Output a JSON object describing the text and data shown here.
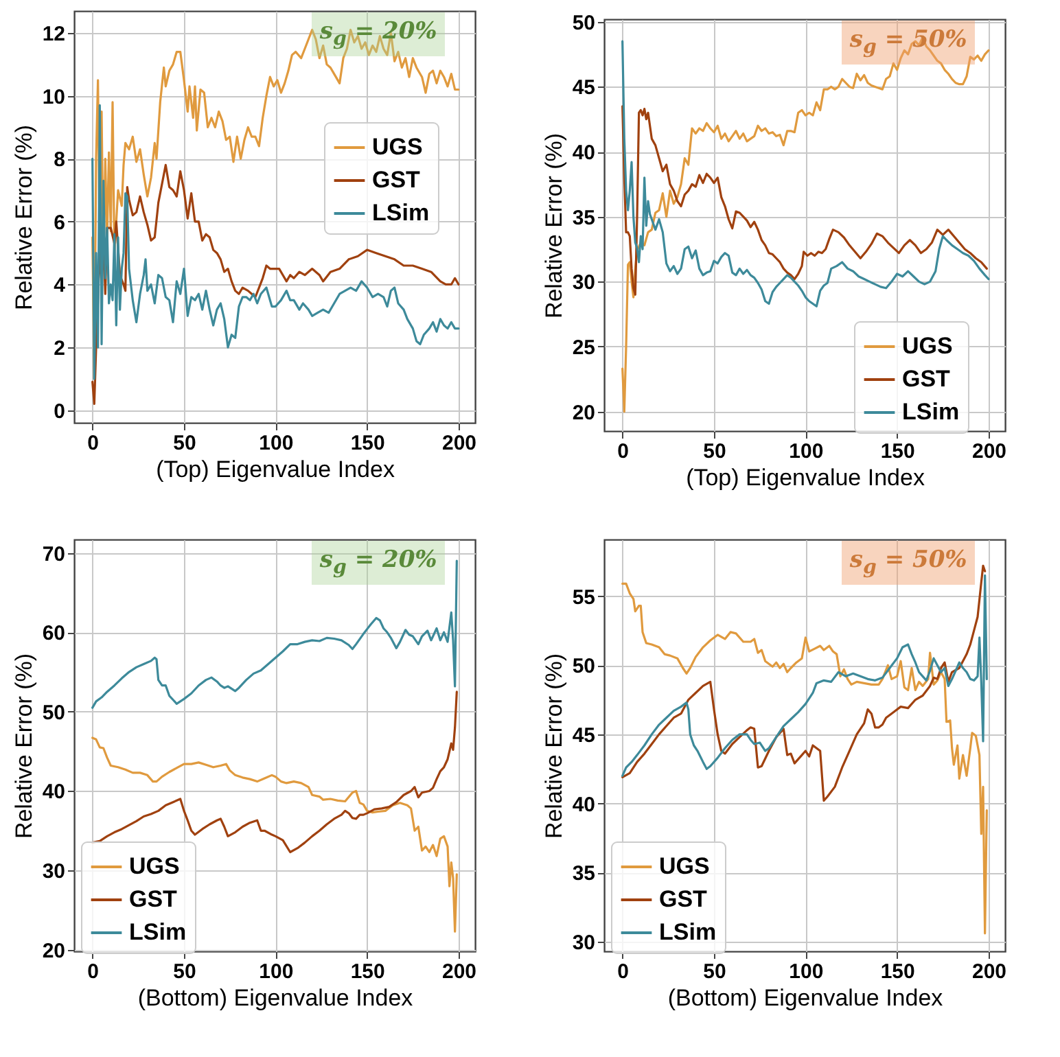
{
  "chart_data": [
    {
      "type": "line",
      "xlabel": "(Top) Eigenvalue Index",
      "ylabel": "Relative Error (%)",
      "annotations": [
        "s$_{g}$ = 20%"
      ],
      "xlim": [
        -10,
        209
      ],
      "xticks": [
        0,
        50,
        100,
        150,
        200
      ],
      "ylim": [
        -0.4,
        12.7
      ],
      "yticks": [
        0,
        2,
        4,
        6,
        8,
        10,
        12
      ],
      "grid": true,
      "legend": "right",
      "series": [
        {
          "name": "UGS",
          "color": "#e09a3e",
          "x": [
            0,
            1,
            2,
            3,
            4,
            5,
            6,
            7,
            8,
            9,
            10,
            11,
            12,
            14,
            16,
            17,
            18,
            20,
            22,
            24,
            26,
            28,
            30,
            32,
            34,
            35,
            37,
            39,
            40,
            42,
            44,
            46,
            48,
            50,
            52,
            53,
            55,
            56,
            57,
            59,
            61,
            63,
            65,
            67,
            69,
            71,
            73,
            75,
            77,
            79,
            81,
            83,
            85,
            87,
            89,
            91,
            93,
            95,
            97,
            99,
            101,
            103,
            105,
            107,
            109,
            111,
            114,
            116,
            118,
            120,
            122,
            124,
            126,
            128,
            130,
            132,
            135,
            137,
            139,
            141,
            143,
            145,
            147,
            149,
            151,
            153,
            155,
            157,
            159,
            161,
            163,
            165,
            167,
            169,
            171,
            173,
            175,
            177,
            180,
            182,
            184,
            186,
            188,
            190,
            192,
            194,
            196,
            198,
            200
          ],
          "values": [
            5.5,
            1,
            8,
            10.5,
            5,
            9.5,
            4.5,
            8,
            5.5,
            8.2,
            5.7,
            9.8,
            5,
            7,
            6.5,
            7.8,
            8.5,
            8.3,
            8.7,
            7.9,
            8.3,
            7.5,
            6.8,
            7.4,
            8.5,
            8,
            9.8,
            10.9,
            10.3,
            10.8,
            11,
            11.4,
            11.4,
            10.5,
            9.5,
            10.3,
            9.3,
            10.3,
            8.9,
            10.2,
            10.1,
            9,
            9.3,
            9,
            9.5,
            9.2,
            8.6,
            8.7,
            7.9,
            8.7,
            8,
            8.6,
            9,
            8.7,
            8.7,
            8.4,
            9.3,
            10,
            10.6,
            10.3,
            10.5,
            10.1,
            10.4,
            10.8,
            11.3,
            11.4,
            11.2,
            11.5,
            11.8,
            12.1,
            11.8,
            11.2,
            11.6,
            11,
            10.9,
            10.7,
            10.4,
            11.2,
            11.5,
            12.1,
            11.7,
            11.9,
            11.5,
            11.7,
            11.3,
            11.6,
            11.4,
            11.9,
            11.5,
            11.3,
            12,
            11.1,
            11.4,
            10.9,
            11.2,
            10.6,
            11.2,
            10.9,
            10.6,
            10.1,
            10.7,
            10.8,
            10.4,
            10.8,
            10.6,
            10.3,
            10.7,
            10.2,
            10.2
          ]
        },
        {
          "name": "GST",
          "color": "#a0410f",
          "x": [
            0,
            1,
            2,
            3,
            4,
            5,
            6,
            7,
            8,
            10,
            12,
            13,
            15,
            17,
            18,
            19,
            20,
            22,
            24,
            26,
            28,
            30,
            32,
            34,
            36,
            38,
            40,
            42,
            44,
            46,
            48,
            50,
            52,
            54,
            56,
            58,
            60,
            62,
            64,
            66,
            68,
            70,
            72,
            74,
            76,
            78,
            80,
            82,
            85,
            87,
            89,
            91,
            93,
            95,
            97,
            100,
            102,
            104,
            106,
            108,
            110,
            113,
            116,
            120,
            124,
            126,
            130,
            135,
            140,
            145,
            150,
            155,
            160,
            165,
            170,
            175,
            180,
            185,
            190,
            193,
            196,
            198,
            200
          ],
          "values": [
            0.9,
            0.2,
            2,
            3.5,
            5.2,
            4,
            5.5,
            3.7,
            5.8,
            5.8,
            5.3,
            6,
            4.3,
            4,
            3.8,
            7.1,
            6.7,
            6.2,
            6.3,
            6.8,
            6.3,
            5.9,
            5.4,
            5.5,
            6.6,
            7.2,
            7.8,
            7.1,
            7,
            6.8,
            7.6,
            7,
            6.1,
            6.9,
            6,
            6,
            5.4,
            5.6,
            5.5,
            5.1,
            5,
            4.8,
            4.4,
            4.5,
            4.1,
            3.8,
            3.7,
            3.9,
            3.8,
            3.7,
            3.6,
            3.9,
            4.2,
            4.6,
            4.5,
            4.5,
            4.5,
            4.3,
            4.1,
            4.3,
            4.2,
            4.4,
            4.3,
            4.5,
            4.3,
            4.1,
            4.4,
            4.5,
            4.8,
            4.9,
            5.1,
            5,
            4.9,
            4.8,
            4.6,
            4.6,
            4.5,
            4.4,
            4.1,
            4,
            4,
            4.2,
            4
          ]
        },
        {
          "name": "LSim",
          "color": "#3d8a9a",
          "x": [
            0,
            1,
            2,
            3,
            4,
            5,
            6,
            7,
            8,
            9,
            10,
            11,
            12,
            13,
            14,
            15,
            16,
            17,
            18,
            19,
            20,
            22,
            24,
            26,
            28,
            29,
            30,
            32,
            34,
            36,
            38,
            40,
            42,
            44,
            46,
            48,
            50,
            52,
            54,
            56,
            58,
            60,
            62,
            64,
            66,
            68,
            70,
            72,
            74,
            76,
            78,
            80,
            82,
            84,
            86,
            88,
            90,
            92,
            95,
            98,
            100,
            103,
            106,
            108,
            110,
            113,
            115,
            118,
            120,
            123,
            126,
            129,
            132,
            135,
            138,
            141,
            144,
            147,
            150,
            153,
            156,
            159,
            161,
            163,
            165,
            167,
            170,
            172,
            175,
            177,
            179,
            181,
            184,
            186,
            188,
            190,
            192,
            194,
            196,
            198,
            200
          ],
          "values": [
            8,
            1,
            5,
            2,
            9.7,
            2.1,
            7.3,
            4.2,
            5.8,
            3.4,
            4,
            3.5,
            5.6,
            2.7,
            5.5,
            3.2,
            4.5,
            5,
            6.9,
            6.8,
            4.5,
            3.5,
            2.8,
            3.7,
            4.3,
            4.8,
            3.8,
            4,
            3.4,
            4.3,
            4.2,
            3.6,
            3.5,
            2.8,
            4.1,
            3.7,
            4.5,
            3,
            3.6,
            3.5,
            3.7,
            3.2,
            3.8,
            3.2,
            2.7,
            3.2,
            3.4,
            2.9,
            2,
            2.4,
            2.3,
            3.3,
            3.6,
            3.6,
            3.5,
            3.7,
            3.4,
            3.7,
            3.9,
            3.3,
            3.3,
            3.5,
            3.8,
            3.5,
            3.5,
            3.2,
            3.4,
            3.2,
            3,
            3.1,
            3.2,
            3.1,
            3.4,
            3.7,
            3.8,
            3.9,
            3.8,
            4.1,
            3.9,
            3.6,
            3.7,
            3.6,
            3.3,
            3.8,
            3.9,
            3.4,
            3.2,
            2.9,
            2.6,
            2.2,
            2.1,
            2.4,
            2.6,
            2.8,
            2.5,
            2.9,
            2.7,
            2.6,
            2.8,
            2.6,
            2.6
          ]
        }
      ]
    },
    {
      "type": "line",
      "xlabel": "(Top) Eigenvalue Index",
      "ylabel": "Relative Error (%)",
      "annotations": [
        "s$_{g}$ = 50%"
      ],
      "xlim": [
        -10,
        209
      ],
      "xticks": [
        0,
        50,
        100,
        150,
        200
      ],
      "ylim": [
        18.5,
        50.2
      ],
      "yticks": [
        20,
        25,
        30,
        35,
        40,
        45,
        50
      ],
      "grid": true,
      "legend": "bottom right",
      "series": [
        {
          "name": "UGS",
          "color": "#e09a3e",
          "x": [
            0,
            1,
            2,
            3,
            4,
            5,
            6,
            7,
            8,
            10,
            12,
            14,
            16,
            18,
            20,
            22,
            24,
            26,
            28,
            30,
            32,
            34,
            36,
            38,
            40,
            42,
            44,
            46,
            48,
            50,
            52,
            54,
            56,
            58,
            60,
            62,
            64,
            66,
            68,
            70,
            72,
            74,
            76,
            78,
            80,
            82,
            84,
            86,
            88,
            90,
            92,
            94,
            96,
            98,
            100,
            102,
            104,
            106,
            108,
            110,
            112,
            114,
            116,
            118,
            120,
            122,
            124,
            126,
            128,
            130,
            132,
            134,
            136,
            138,
            140,
            142,
            144,
            146,
            148,
            150,
            152,
            154,
            156,
            158,
            160,
            162,
            164,
            166,
            168,
            170,
            172,
            174,
            176,
            178,
            180,
            182,
            184,
            186,
            188,
            190,
            192,
            194,
            196,
            198,
            200
          ],
          "values": [
            23.3,
            20,
            25,
            31.3,
            31.5,
            30,
            28.8,
            31,
            32.4,
            33,
            32.8,
            33.8,
            34,
            35.3,
            35.5,
            36.8,
            35,
            37,
            36,
            36.5,
            37.5,
            39.5,
            39,
            41.8,
            41.4,
            41.8,
            41.6,
            42.2,
            41.8,
            41.5,
            42,
            41,
            41.4,
            40.8,
            41.2,
            41.6,
            41,
            41.4,
            40.8,
            41,
            41.2,
            42,
            41.6,
            41.8,
            41.4,
            41.5,
            41.2,
            41.3,
            40.5,
            41.6,
            41.6,
            41.5,
            43,
            43.2,
            42.8,
            43,
            42.8,
            43.8,
            43.2,
            44.8,
            44.8,
            45,
            44.8,
            45,
            45.6,
            45.3,
            45,
            44.9,
            46,
            45.5,
            45.9,
            45.3,
            45.1,
            45,
            44.9,
            44.8,
            45.6,
            45.8,
            46.8,
            46.3,
            47.2,
            47.8,
            47.5,
            48.3,
            48.5,
            48.2,
            48.8,
            48.1,
            47.8,
            47.4,
            47,
            46.8,
            46.3,
            46,
            45.6,
            45.3,
            45.2,
            45.2,
            45.8,
            47.3,
            47.1,
            47.4,
            47,
            47.5,
            47.8
          ]
        },
        {
          "name": "GST",
          "color": "#a0410f",
          "x": [
            0,
            1,
            2,
            3,
            4,
            5,
            6,
            7,
            8,
            9,
            10,
            11,
            12,
            13,
            14,
            16,
            18,
            20,
            22,
            24,
            26,
            28,
            30,
            32,
            34,
            36,
            38,
            40,
            42,
            44,
            46,
            48,
            50,
            52,
            54,
            56,
            58,
            60,
            62,
            64,
            66,
            68,
            70,
            72,
            74,
            76,
            78,
            80,
            82,
            84,
            86,
            88,
            90,
            92,
            94,
            96,
            98,
            99,
            101,
            103,
            105,
            107,
            109,
            111,
            113,
            115,
            118,
            121,
            124,
            127,
            130,
            133,
            136,
            139,
            142,
            145,
            148,
            151,
            154,
            157,
            160,
            163,
            166,
            169,
            172,
            175,
            178,
            181,
            184,
            187,
            190,
            193,
            196,
            199
          ],
          "values": [
            43.5,
            38,
            33.8,
            33.8,
            33.5,
            31,
            29.5,
            29,
            35,
            43,
            43.2,
            42.8,
            43.3,
            42.5,
            43,
            41,
            40.5,
            39.5,
            38.5,
            39,
            37.5,
            37,
            36.2,
            35.8,
            36.7,
            37,
            37.5,
            37.3,
            38.2,
            37.6,
            38.3,
            38,
            37.6,
            38,
            36.5,
            35.8,
            34.8,
            34.1,
            35.4,
            35.3,
            35,
            34.7,
            34.2,
            34.6,
            34,
            33.2,
            32.8,
            32.2,
            32.1,
            31.8,
            31.5,
            31,
            30.7,
            30.5,
            30.2,
            30.6,
            31.2,
            32.3,
            32,
            32.2,
            32,
            32.3,
            32.2,
            32.5,
            33.3,
            34,
            33.8,
            33.4,
            32.8,
            32.3,
            31.8,
            32.3,
            32.9,
            33.7,
            33.5,
            33,
            32.6,
            32.2,
            32.8,
            33.2,
            32.8,
            32.2,
            32.5,
            33,
            34,
            33.6,
            34,
            33.5,
            33,
            32.5,
            32.2,
            31.8,
            31.5,
            31
          ]
        },
        {
          "name": "LSim",
          "color": "#3d8a9a",
          "x": [
            0,
            1,
            2,
            3,
            4,
            5,
            6,
            7,
            8,
            9,
            10,
            11,
            12,
            13,
            14,
            15,
            16,
            18,
            20,
            22,
            24,
            26,
            28,
            30,
            32,
            34,
            36,
            38,
            40,
            42,
            44,
            46,
            48,
            50,
            52,
            54,
            56,
            58,
            60,
            62,
            64,
            66,
            68,
            70,
            72,
            74,
            76,
            78,
            80,
            82,
            84,
            86,
            88,
            90,
            92,
            94,
            96,
            98,
            100,
            102,
            104,
            106,
            108,
            110,
            112,
            114,
            117,
            120,
            123,
            126,
            129,
            132,
            135,
            138,
            141,
            144,
            147,
            150,
            153,
            156,
            159,
            162,
            165,
            168,
            171,
            173,
            175,
            177,
            180,
            183,
            186,
            189,
            192,
            195,
            198,
            200
          ],
          "values": [
            48.5,
            41,
            37,
            35.5,
            37,
            39.2,
            35,
            33,
            32.6,
            31.5,
            33.5,
            32.5,
            38,
            34.3,
            36.2,
            35.2,
            34.8,
            34,
            34.8,
            33.8,
            31.4,
            30.8,
            31.2,
            30.6,
            31,
            32.5,
            32.7,
            31.8,
            32.4,
            31,
            30.5,
            30.7,
            30.8,
            31.6,
            31.4,
            31.9,
            32.2,
            32,
            30.7,
            30.5,
            31,
            30.6,
            30.9,
            30.5,
            30.3,
            29.9,
            29.4,
            28.5,
            28.3,
            29.2,
            29.6,
            29.9,
            30.2,
            30.5,
            30.3,
            30,
            29.7,
            29.3,
            28.8,
            28.5,
            28.3,
            28.1,
            29.3,
            29.7,
            29.9,
            31,
            31.2,
            31.5,
            31,
            30.8,
            30.4,
            30.2,
            30,
            29.8,
            29.6,
            29.5,
            30,
            30.6,
            30.4,
            30.8,
            30.4,
            30,
            29.8,
            30,
            30.8,
            32.5,
            33.5,
            33.2,
            32.8,
            32.5,
            32.2,
            32,
            31.6,
            31,
            30.5,
            30.2
          ]
        }
      ]
    },
    {
      "type": "line",
      "xlabel": "(Bottom) Eigenvalue Index",
      "ylabel": "Relative Error (%)",
      "annotations": [
        "s$_{g}$ = 20%"
      ],
      "xlim": [
        -10,
        209
      ],
      "xticks": [
        0,
        50,
        100,
        150,
        200
      ],
      "ylim": [
        19.8,
        71.7
      ],
      "yticks": [
        20,
        30,
        40,
        50,
        60,
        70
      ],
      "grid": true,
      "legend": "bottom left",
      "series": [
        {
          "name": "UGS",
          "color": "#e09a3e",
          "x": [
            0,
            2,
            4,
            6,
            8,
            10,
            14,
            18,
            22,
            26,
            30,
            33,
            35,
            38,
            42,
            46,
            50,
            54,
            58,
            62,
            66,
            70,
            73,
            75,
            78,
            82,
            86,
            90,
            94,
            98,
            100,
            103,
            106,
            110,
            114,
            118,
            120,
            124,
            126,
            130,
            134,
            138,
            142,
            144,
            146,
            148,
            150,
            153,
            156,
            160,
            164,
            168,
            172,
            174,
            176,
            178,
            180,
            182,
            184,
            186,
            188,
            190,
            192,
            194,
            195,
            196,
            197,
            198,
            199
          ],
          "values": [
            46.7,
            46.5,
            45.5,
            45.4,
            44.2,
            43.2,
            43,
            42.7,
            42.3,
            42.3,
            42,
            41.2,
            41.2,
            41.8,
            42.4,
            42.9,
            43.4,
            43.4,
            43.6,
            43.3,
            43,
            43.2,
            43.4,
            42.6,
            42,
            41.7,
            41.5,
            41.2,
            41.6,
            42,
            41.8,
            41.2,
            41,
            41.2,
            41,
            40.5,
            39.5,
            39.3,
            38.9,
            39,
            38.8,
            38.7,
            39.8,
            40,
            38.5,
            38.3,
            37.5,
            37.3,
            37.4,
            37.5,
            38.2,
            38.5,
            38.2,
            37.8,
            35,
            35.5,
            32.5,
            33,
            32.3,
            33.2,
            31.8,
            34,
            34.3,
            33,
            28,
            31,
            29,
            22.3,
            29.5
          ]
        },
        {
          "name": "GST",
          "color": "#a0410f",
          "x": [
            0,
            4,
            8,
            12,
            16,
            20,
            24,
            28,
            32,
            36,
            40,
            44,
            48,
            50,
            52,
            54,
            56,
            60,
            64,
            68,
            70,
            72,
            74,
            78,
            82,
            86,
            90,
            92,
            94,
            98,
            100,
            104,
            108,
            112,
            116,
            120,
            124,
            128,
            132,
            136,
            138,
            140,
            142,
            144,
            146,
            148,
            150,
            154,
            158,
            162,
            166,
            170,
            174,
            176,
            178,
            180,
            184,
            186,
            188,
            190,
            192,
            194,
            196,
            197,
            198,
            199
          ],
          "values": [
            33.5,
            33.7,
            34.3,
            34.8,
            35.2,
            35.7,
            36.2,
            36.8,
            37.1,
            37.5,
            38.2,
            38.6,
            39,
            37.5,
            36.3,
            35,
            34.5,
            35.2,
            35.8,
            36.3,
            36.5,
            35.5,
            34.3,
            34.8,
            35.5,
            36,
            36.3,
            35,
            35,
            34.5,
            34.3,
            33.8,
            32.3,
            32.8,
            33.5,
            34.3,
            35,
            35.8,
            36.5,
            37,
            37.5,
            37.2,
            36.6,
            36.5,
            37,
            37,
            37.2,
            37.7,
            37.8,
            38,
            38.6,
            39.5,
            40,
            40.5,
            39.2,
            39.8,
            40,
            40.4,
            41.5,
            42.5,
            43,
            44,
            46,
            45.2,
            48,
            52.5
          ]
        },
        {
          "name": "LSim",
          "color": "#3d8a9a",
          "x": [
            0,
            2,
            5,
            8,
            12,
            16,
            20,
            24,
            28,
            32,
            34,
            35,
            36,
            38,
            40,
            42,
            44,
            46,
            48,
            50,
            54,
            58,
            62,
            65,
            68,
            70,
            72,
            74,
            76,
            78,
            80,
            84,
            88,
            92,
            96,
            100,
            104,
            108,
            112,
            116,
            120,
            124,
            128,
            132,
            136,
            140,
            142,
            144,
            148,
            150,
            152,
            155,
            157,
            159,
            161,
            163,
            166,
            168,
            171,
            173,
            175,
            178,
            180,
            183,
            185,
            188,
            190,
            192,
            194,
            196,
            197,
            198,
            199
          ],
          "values": [
            50.5,
            51.3,
            51.8,
            52.5,
            53.3,
            54.2,
            55,
            55.6,
            56,
            56.4,
            56.8,
            56.6,
            54,
            53.3,
            53.3,
            52,
            51.5,
            51,
            51.3,
            51.6,
            52.3,
            53.3,
            54,
            54.3,
            53.8,
            53.3,
            53,
            53.2,
            52.9,
            52.6,
            53,
            54,
            54.8,
            55.2,
            56,
            56.8,
            57.6,
            58.5,
            58.5,
            58.8,
            59,
            58.9,
            59.3,
            59.2,
            59,
            58.4,
            57.9,
            58.5,
            59.8,
            60.4,
            61,
            61.8,
            61.5,
            60.5,
            60,
            59.3,
            58,
            58.8,
            60.3,
            59.7,
            59.5,
            58.5,
            59.5,
            60.2,
            59,
            60.5,
            59,
            60,
            58.8,
            62.5,
            59,
            53.2,
            69
          ]
        }
      ]
    },
    {
      "type": "line",
      "xlabel": "(Bottom) Eigenvalue Index",
      "ylabel": "Relative Error (%)",
      "annotations": [
        "s$_{g}$ = 50%"
      ],
      "xlim": [
        -10,
        209
      ],
      "xticks": [
        0,
        50,
        100,
        150,
        200
      ],
      "ylim": [
        29.3,
        59.1
      ],
      "yticks": [
        30,
        35,
        40,
        45,
        50,
        55
      ],
      "grid": true,
      "legend": "bottom left",
      "series": [
        {
          "name": "UGS",
          "color": "#e09a3e",
          "x": [
            0,
            2,
            4,
            6,
            7,
            9,
            10,
            11,
            13,
            16,
            20,
            23,
            26,
            30,
            33,
            35,
            37,
            40,
            44,
            48,
            52,
            56,
            59,
            62,
            66,
            70,
            72,
            74,
            76,
            78,
            80,
            82,
            84,
            86,
            88,
            90,
            92,
            95,
            98,
            100,
            102,
            105,
            108,
            110,
            113,
            115,
            117,
            119,
            121,
            123,
            125,
            128,
            132,
            136,
            140,
            142,
            145,
            147,
            150,
            152,
            154,
            156,
            158,
            160,
            162,
            164,
            167,
            168,
            170,
            172,
            174,
            176,
            177,
            179,
            180,
            181,
            183,
            184,
            186,
            188,
            190,
            191,
            193,
            194,
            195,
            196,
            197,
            198,
            199
          ],
          "values": [
            55.9,
            55.9,
            55.2,
            54.8,
            53.9,
            54.3,
            54.3,
            52.4,
            51.6,
            51.5,
            51.3,
            50.8,
            50.7,
            50.5,
            49.8,
            49.4,
            49.8,
            50.6,
            51.3,
            51.8,
            52.2,
            51.9,
            52.4,
            52.3,
            51.7,
            51.7,
            51.9,
            50.9,
            51.1,
            50.3,
            50.1,
            49.9,
            50.2,
            49.8,
            50.1,
            49.5,
            49.8,
            50.2,
            50.5,
            52,
            51,
            51.2,
            51.4,
            51.1,
            51.4,
            51,
            50.8,
            49.2,
            49.7,
            49,
            48.6,
            48.8,
            48.7,
            48.6,
            48.6,
            49,
            50,
            49,
            49.2,
            50.3,
            48.4,
            48.2,
            49.8,
            48.2,
            48.8,
            48.5,
            49,
            50.9,
            48.6,
            48.9,
            49.5,
            49,
            45.9,
            46,
            44,
            42.8,
            44.2,
            41.8,
            43.5,
            42,
            44,
            45.1,
            44.9,
            44.2,
            43.5,
            37.8,
            41.2,
            30.6,
            39.5
          ]
        },
        {
          "name": "GST",
          "color": "#a0410f",
          "x": [
            0,
            4,
            8,
            12,
            16,
            20,
            24,
            28,
            32,
            36,
            40,
            44,
            48,
            50,
            52,
            54,
            56,
            60,
            64,
            68,
            70,
            72,
            74,
            76,
            80,
            84,
            88,
            90,
            92,
            94,
            98,
            100,
            102,
            104,
            106,
            108,
            110,
            112,
            116,
            120,
            124,
            128,
            132,
            134,
            136,
            138,
            140,
            142,
            144,
            148,
            152,
            156,
            160,
            164,
            168,
            170,
            172,
            174,
            176,
            178,
            180,
            184,
            188,
            190,
            192,
            194,
            196,
            197,
            198
          ],
          "values": [
            41.9,
            42.2,
            43,
            43.6,
            44.3,
            45,
            45.6,
            46.2,
            46.5,
            47.5,
            48,
            48.5,
            48.8,
            46.8,
            45,
            43.8,
            43.6,
            44.3,
            44.8,
            45.3,
            45.5,
            45.4,
            42.6,
            42.7,
            43.8,
            44.8,
            45.4,
            43.5,
            43.6,
            42.9,
            43.5,
            43.8,
            43.4,
            44.2,
            44,
            43.8,
            40.2,
            40.5,
            41.2,
            42.6,
            43.8,
            45,
            45.8,
            46.8,
            46.5,
            45.5,
            45.5,
            45.7,
            46.2,
            46.6,
            47,
            46.9,
            47.5,
            47.8,
            48.5,
            49.1,
            49,
            49.8,
            50.2,
            48.8,
            49.5,
            49.8,
            50.8,
            51.5,
            52.5,
            53.5,
            56,
            57.2,
            56.8
          ]
        },
        {
          "name": "LSim",
          "color": "#3d8a9a",
          "x": [
            0,
            2,
            5,
            8,
            12,
            16,
            20,
            24,
            28,
            32,
            35,
            36,
            37,
            39,
            41,
            44,
            46,
            48,
            52,
            56,
            60,
            64,
            68,
            70,
            72,
            75,
            78,
            80,
            84,
            88,
            92,
            96,
            100,
            104,
            106,
            110,
            114,
            118,
            122,
            126,
            130,
            134,
            138,
            142,
            146,
            150,
            153,
            156,
            158,
            160,
            162,
            164,
            166,
            168,
            170,
            172,
            174,
            176,
            178,
            180,
            182,
            184,
            186,
            188,
            190,
            192,
            194,
            195,
            196,
            197,
            198,
            199
          ],
          "values": [
            42,
            42.6,
            43,
            43.5,
            44.2,
            45,
            45.7,
            46.2,
            46.7,
            47,
            47.3,
            46.8,
            45,
            44.2,
            43.8,
            43,
            42.5,
            42.7,
            43.3,
            44,
            44.6,
            45,
            45,
            44.6,
            44.3,
            44.4,
            43.8,
            44,
            44.8,
            45.6,
            46.1,
            46.6,
            47.2,
            48,
            48.7,
            48.9,
            48.8,
            49.5,
            49.2,
            49.4,
            49.2,
            49,
            48.9,
            49.1,
            49.8,
            50.5,
            51.3,
            51.5,
            50.8,
            50.2,
            49.5,
            49.2,
            48.9,
            49.6,
            50.5,
            50,
            49.5,
            49.8,
            48.5,
            49,
            49.6,
            50.2,
            49.8,
            49.5,
            49,
            48.9,
            49.2,
            52,
            48.8,
            44.5,
            56.5,
            49
          ]
        }
      ]
    }
  ]
}
